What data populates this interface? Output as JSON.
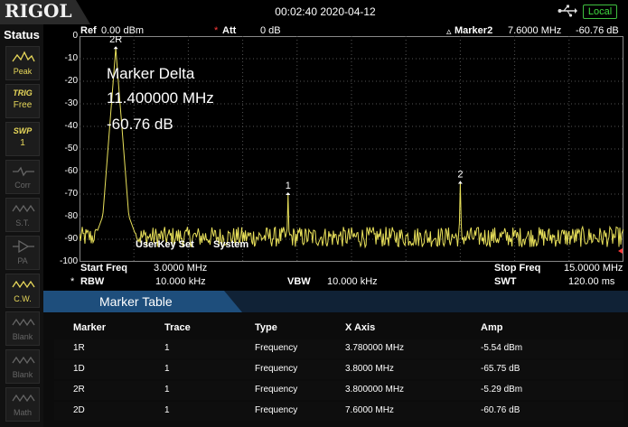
{
  "brand": "RIGOL",
  "datetime": "00:02:40 2020-04-12",
  "remote_status": "Local",
  "left_panel": {
    "title": "Status",
    "buttons": [
      {
        "name": "peak",
        "label": "Peak",
        "state": "on"
      },
      {
        "name": "trig",
        "label_top": "TRIG",
        "label": "Free",
        "state": "on"
      },
      {
        "name": "swp",
        "label_top": "SWP",
        "label": "1",
        "state": "on"
      },
      {
        "name": "corr",
        "label": "Corr",
        "state": "dim"
      },
      {
        "name": "st",
        "label": "S.T.",
        "state": "dim"
      },
      {
        "name": "pa",
        "label": "PA",
        "state": "dim"
      },
      {
        "name": "cw",
        "label": "C.W.",
        "state": "on"
      },
      {
        "name": "blank1",
        "label": "Blank",
        "state": "dim"
      },
      {
        "name": "blank2",
        "label": "Blank",
        "state": "dim"
      },
      {
        "name": "math",
        "label": "Math",
        "state": "dim"
      }
    ]
  },
  "header": {
    "ref_label": "Ref",
    "ref_value": "0.00 dBm",
    "att_label": "Att",
    "att_value": "0 dB",
    "marker_label": "Marker2",
    "marker_freq": "7.6000 MHz",
    "marker_amp": "-60.76 dB"
  },
  "marker_delta": {
    "title": "Marker Delta",
    "freq": "11.400000 MHz",
    "amp": "-60.76 dB"
  },
  "overlay_text": {
    "userkey": "UserKey Set",
    "system": "System"
  },
  "chart_data": {
    "type": "line",
    "y_ticks": [
      "0",
      "-10",
      "-20",
      "-30",
      "-40",
      "-50",
      "-60",
      "-70",
      "-80",
      "-90",
      "-100"
    ],
    "ylim": [
      -100,
      0
    ],
    "xlim_mhz": [
      3.0,
      15.0
    ],
    "noise_floor_db": -89,
    "peaks": [
      {
        "label": "2R",
        "x_mhz": 3.8,
        "y_db": -5.29
      },
      {
        "label": "1",
        "x_mhz": 7.6,
        "y_db": -70
      },
      {
        "label": "2",
        "x_mhz": 11.4,
        "y_db": -65
      }
    ],
    "trace_color": "#e8e05a",
    "grid": true
  },
  "footer": {
    "start_label": "Start Freq",
    "start_value": "3.0000 MHz",
    "stop_label": "Stop Freq",
    "stop_value": "15.0000 MHz",
    "rbw_label": "RBW",
    "rbw_value": "10.000 kHz",
    "vbw_label": "VBW",
    "vbw_value": "10.000 kHz",
    "swt_label": "SWT",
    "swt_value": "120.00 ms"
  },
  "marker_table": {
    "title": "Marker Table",
    "columns": [
      "Marker",
      "Trace",
      "Type",
      "X Axis",
      "Amp"
    ],
    "rows": [
      [
        "1R",
        "1",
        "Frequency",
        "3.780000 MHz",
        "-5.54 dBm"
      ],
      [
        "1D",
        "1",
        "Frequency",
        "3.8000 MHz",
        "-65.75 dB"
      ],
      [
        "2R",
        "1",
        "Frequency",
        "3.800000 MHz",
        "-5.29 dBm"
      ],
      [
        "2D",
        "1",
        "Frequency",
        "7.6000 MHz",
        "-60.76 dB"
      ]
    ]
  }
}
